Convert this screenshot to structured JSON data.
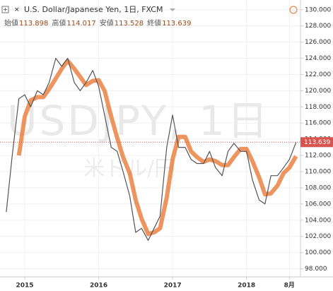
{
  "chart_data": {
    "type": "line",
    "title": "U.S. Dollar/Japanese Yen, 1日, FXCM",
    "watermark": "USDJPY, 1日",
    "watermark_sub": "米ドル/円",
    "ohlc": [
      {
        "label": "始値",
        "value": 113.898
      },
      {
        "label": "高値",
        "value": 114.017
      },
      {
        "label": "安値",
        "value": 113.528
      },
      {
        "label": "終値",
        "value": 113.639
      }
    ],
    "x": [
      2014.75,
      2014.83,
      2014.92,
      2015.0,
      2015.08,
      2015.17,
      2015.25,
      2015.33,
      2015.42,
      2015.5,
      2015.58,
      2015.67,
      2015.75,
      2015.83,
      2015.92,
      2016.0,
      2016.08,
      2016.17,
      2016.25,
      2016.33,
      2016.42,
      2016.5,
      2016.58,
      2016.67,
      2016.75,
      2016.83,
      2016.92,
      2017.0,
      2017.08,
      2017.17,
      2017.25,
      2017.33,
      2017.42,
      2017.5,
      2017.58,
      2017.67,
      2017.75,
      2017.83,
      2017.92,
      2018.0,
      2018.08,
      2018.17,
      2018.25,
      2018.33,
      2018.42,
      2018.5,
      2018.58,
      2018.67
    ],
    "series": [
      {
        "color": "#e8722a",
        "width": 6,
        "values": [
          null,
          null,
          112,
          116.8,
          118.8,
          119.2,
          119.2,
          120.2,
          121.5,
          122.7,
          123.7,
          122.7,
          121.7,
          120.7,
          121.2,
          121.3,
          120,
          116.8,
          114.2,
          111.8,
          109.8,
          106.5,
          104.2,
          102.3,
          102.5,
          103,
          106.8,
          111.5,
          114.3,
          114.3,
          112.5,
          111.8,
          111.2,
          111.5,
          111.3,
          110.8,
          110.8,
          111.8,
          112.8,
          112.8,
          111.3,
          109.3,
          107.2,
          107.3,
          108.3,
          109.8,
          110.5,
          111.9
        ]
      },
      {
        "color": "#555555",
        "width": 1.2,
        "values": [
          105,
          112,
          119,
          119.5,
          118,
          120,
          119.5,
          121,
          124,
          123,
          124,
          121,
          120,
          121,
          122.5,
          120.5,
          117,
          113,
          112.5,
          110,
          107,
          102.5,
          103,
          101.5,
          103,
          104.5,
          113,
          117,
          113,
          113,
          111.5,
          111,
          111,
          112.5,
          110.5,
          109.5,
          112.5,
          113.5,
          112.5,
          112.5,
          109,
          106.5,
          106,
          109.5,
          109.5,
          110.5,
          111.5,
          113.6
        ]
      }
    ],
    "xlim": [
      2014.665,
      2018.73
    ],
    "ylim": [
      97.0,
      131.2
    ],
    "xticks": [
      {
        "value": 2015,
        "label": "2015"
      },
      {
        "value": 2016,
        "label": "2016"
      },
      {
        "value": 2017,
        "label": "2017"
      },
      {
        "value": 2018,
        "label": "2018"
      },
      {
        "value": 2018.58,
        "label": "8月"
      }
    ],
    "yticks": [
      {
        "value": 98,
        "label": "98.000"
      },
      {
        "value": 100,
        "label": "100.000"
      },
      {
        "value": 102,
        "label": "102.000"
      },
      {
        "value": 104,
        "label": "104.000"
      },
      {
        "value": 106,
        "label": "106.000"
      },
      {
        "value": 108,
        "label": "108.000"
      },
      {
        "value": 110,
        "label": "110.000"
      },
      {
        "value": 112,
        "label": "112.000"
      },
      {
        "value": 114,
        "label": "114.000"
      },
      {
        "value": 116,
        "label": "116.000"
      },
      {
        "value": 118,
        "label": "118.000"
      },
      {
        "value": 120,
        "label": "120.000"
      },
      {
        "value": 122,
        "label": "122.000"
      },
      {
        "value": 124,
        "label": "124.000"
      },
      {
        "value": 126,
        "label": "126.000"
      },
      {
        "value": 128,
        "label": "128.000"
      },
      {
        "value": 130,
        "label": "130.000"
      }
    ],
    "grid": true,
    "price_line_color": "#d9534f"
  }
}
